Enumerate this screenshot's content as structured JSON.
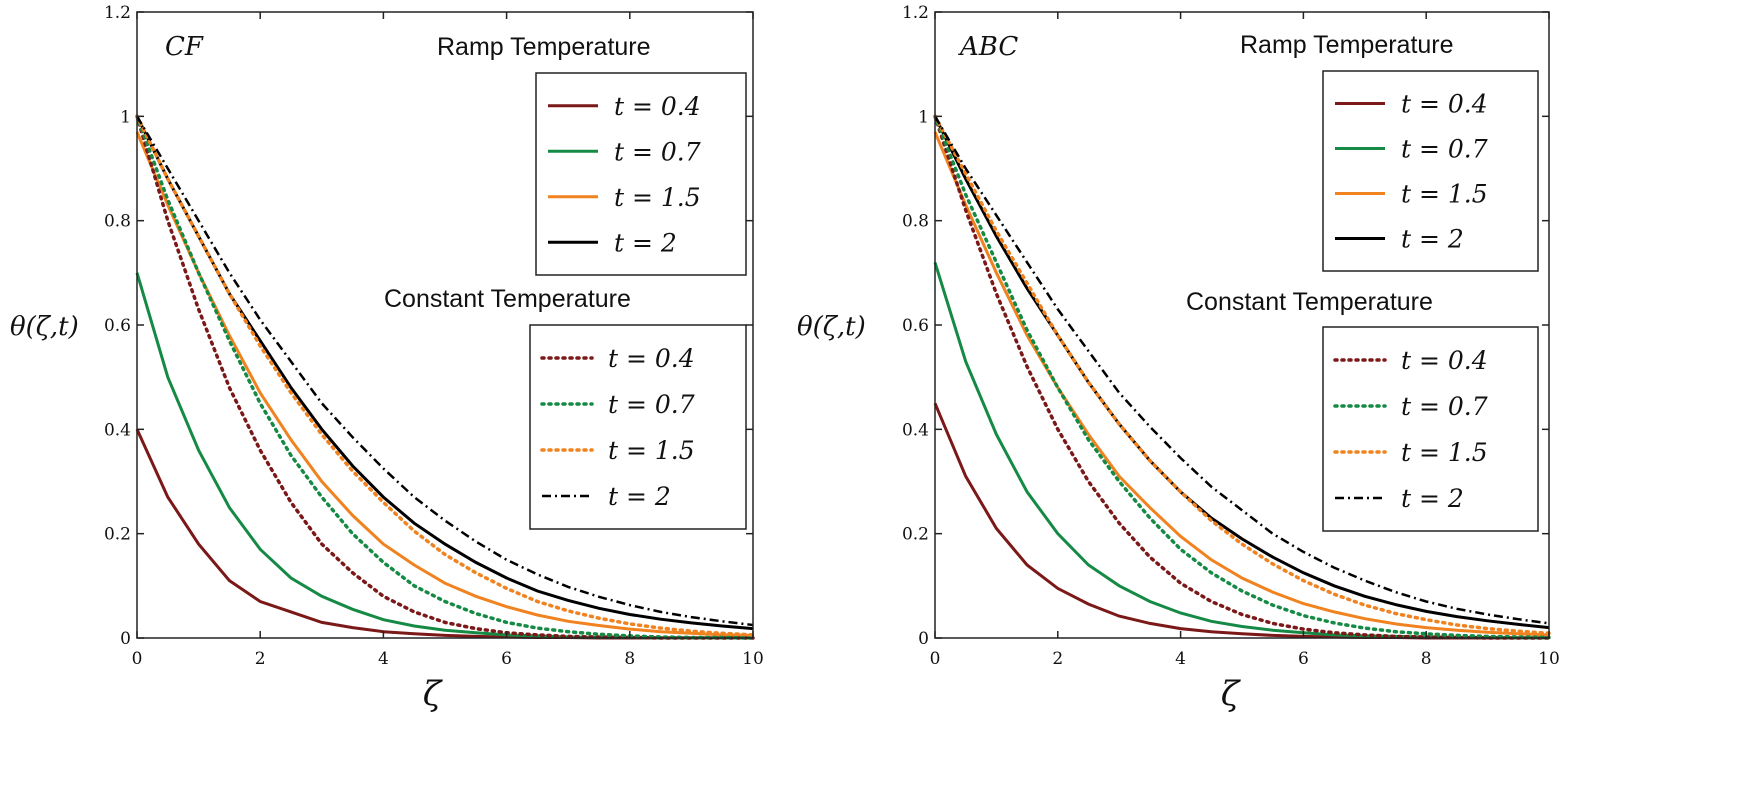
{
  "chart_data": [
    {
      "type": "line",
      "panel_label": "CF",
      "xlabel": "ζ",
      "ylabel": "θ(ζ,t)",
      "xlim": [
        0,
        10
      ],
      "ylim": [
        0,
        1.2
      ],
      "x_ticks": [
        0,
        2,
        4,
        6,
        8,
        10
      ],
      "y_ticks": [
        0,
        0.2,
        0.4,
        0.6,
        0.8,
        1,
        1.2
      ],
      "x_tick_labels": [
        "0",
        "2",
        "4",
        "6",
        "8",
        "10"
      ],
      "y_tick_labels": [
        "0",
        "0.2",
        "0.4",
        "0.6",
        "0.8",
        "1",
        "1.2"
      ],
      "grid": false,
      "x": [
        0,
        0.5,
        1,
        1.5,
        2,
        2.5,
        3,
        3.5,
        4,
        4.5,
        5,
        5.5,
        6,
        6.5,
        7,
        7.5,
        8,
        8.5,
        9,
        9.5,
        10
      ],
      "legends": [
        {
          "title": "Ramp Temperature",
          "placement": "top-right",
          "entries": [
            {
              "label": "t = 0.4",
              "series_index": 0
            },
            {
              "label": "t = 0.7",
              "series_index": 1
            },
            {
              "label": "t = 1.5",
              "series_index": 2
            },
            {
              "label": "t = 2",
              "series_index": 3
            }
          ]
        },
        {
          "title": "Constant Temperature",
          "placement": "middle-right",
          "entries": [
            {
              "label": "t = 0.4",
              "series_index": 4
            },
            {
              "label": "t = 0.7",
              "series_index": 5
            },
            {
              "label": "t = 1.5",
              "series_index": 6
            },
            {
              "label": "t = 2",
              "series_index": 7
            }
          ]
        }
      ],
      "series": [
        {
          "group": "ramp",
          "t": 0.4,
          "color": "#7b1818",
          "style": "solid",
          "values": [
            0.4,
            0.27,
            0.18,
            0.11,
            0.07,
            0.05,
            0.03,
            0.02,
            0.012,
            0.008,
            0.005,
            0.003,
            0.002,
            0.001,
            0.001,
            0,
            0,
            0,
            0,
            0,
            0
          ]
        },
        {
          "group": "ramp",
          "t": 0.7,
          "color": "#158a45",
          "style": "solid",
          "values": [
            0.7,
            0.5,
            0.36,
            0.25,
            0.17,
            0.115,
            0.08,
            0.055,
            0.035,
            0.023,
            0.015,
            0.01,
            0.006,
            0.004,
            0.002,
            0.001,
            0.001,
            0,
            0,
            0,
            0
          ]
        },
        {
          "group": "ramp",
          "t": 1.5,
          "color": "#f0821f",
          "style": "solid",
          "values": [
            0.97,
            0.83,
            0.7,
            0.58,
            0.47,
            0.38,
            0.3,
            0.235,
            0.18,
            0.14,
            0.105,
            0.08,
            0.06,
            0.044,
            0.032,
            0.024,
            0.017,
            0.012,
            0.009,
            0.006,
            0.005
          ]
        },
        {
          "group": "ramp",
          "t": 2,
          "color": "#000000",
          "style": "solid",
          "values": [
            1.0,
            0.88,
            0.77,
            0.66,
            0.57,
            0.48,
            0.4,
            0.33,
            0.27,
            0.22,
            0.18,
            0.145,
            0.115,
            0.09,
            0.072,
            0.057,
            0.045,
            0.036,
            0.029,
            0.023,
            0.018
          ]
        },
        {
          "group": "constant",
          "t": 0.4,
          "color": "#7b1818",
          "style": "dotted",
          "values": [
            1.0,
            0.8,
            0.63,
            0.48,
            0.36,
            0.26,
            0.18,
            0.125,
            0.08,
            0.05,
            0.03,
            0.018,
            0.01,
            0.006,
            0.003,
            0.002,
            0.001,
            0,
            0,
            0,
            0
          ]
        },
        {
          "group": "constant",
          "t": 0.7,
          "color": "#158a45",
          "style": "dotted",
          "values": [
            1.0,
            0.84,
            0.7,
            0.57,
            0.45,
            0.35,
            0.27,
            0.2,
            0.145,
            0.1,
            0.07,
            0.047,
            0.03,
            0.019,
            0.012,
            0.007,
            0.004,
            0.002,
            0.001,
            0.001,
            0
          ]
        },
        {
          "group": "constant",
          "t": 1.5,
          "color": "#f0821f",
          "style": "dotted",
          "values": [
            1.0,
            0.88,
            0.77,
            0.66,
            0.56,
            0.47,
            0.39,
            0.32,
            0.26,
            0.205,
            0.16,
            0.125,
            0.095,
            0.07,
            0.052,
            0.038,
            0.027,
            0.019,
            0.013,
            0.009,
            0.006
          ]
        },
        {
          "group": "constant",
          "t": 2,
          "color": "#000000",
          "style": "dashdot",
          "values": [
            1.0,
            0.9,
            0.8,
            0.7,
            0.61,
            0.53,
            0.45,
            0.385,
            0.325,
            0.27,
            0.225,
            0.185,
            0.15,
            0.122,
            0.098,
            0.079,
            0.063,
            0.05,
            0.04,
            0.032,
            0.025
          ]
        }
      ]
    },
    {
      "type": "line",
      "panel_label": "ABC",
      "xlabel": "ζ",
      "ylabel": "θ(ζ,t)",
      "xlim": [
        0,
        10
      ],
      "ylim": [
        0,
        1.2
      ],
      "x_ticks": [
        0,
        2,
        4,
        6,
        8,
        10
      ],
      "y_ticks": [
        0,
        0.2,
        0.4,
        0.6,
        0.8,
        1,
        1.2
      ],
      "x_tick_labels": [
        "0",
        "2",
        "4",
        "6",
        "8",
        "10"
      ],
      "y_tick_labels": [
        "0",
        "0.2",
        "0.4",
        "0.6",
        "0.8",
        "1",
        "1.2"
      ],
      "grid": false,
      "x": [
        0,
        0.5,
        1,
        1.5,
        2,
        2.5,
        3,
        3.5,
        4,
        4.5,
        5,
        5.5,
        6,
        6.5,
        7,
        7.5,
        8,
        8.5,
        9,
        9.5,
        10
      ],
      "legends": [
        {
          "title": "Ramp Temperature",
          "placement": "top-right",
          "entries": [
            {
              "label": "t = 0.4",
              "series_index": 0
            },
            {
              "label": "t = 0.7",
              "series_index": 1
            },
            {
              "label": "t = 1.5",
              "series_index": 2
            },
            {
              "label": "t = 2",
              "series_index": 3
            }
          ]
        },
        {
          "title": "Constant Temperature",
          "placement": "middle-right",
          "entries": [
            {
              "label": "t = 0.4",
              "series_index": 4
            },
            {
              "label": "t = 0.7",
              "series_index": 5
            },
            {
              "label": "t = 1.5",
              "series_index": 6
            },
            {
              "label": "t = 2",
              "series_index": 7
            }
          ]
        }
      ],
      "series": [
        {
          "group": "ramp",
          "t": 0.4,
          "color": "#7b1818",
          "style": "solid",
          "values": [
            0.45,
            0.31,
            0.21,
            0.14,
            0.095,
            0.065,
            0.042,
            0.028,
            0.018,
            0.012,
            0.008,
            0.005,
            0.003,
            0.002,
            0.001,
            0.001,
            0,
            0,
            0,
            0,
            0
          ]
        },
        {
          "group": "ramp",
          "t": 0.7,
          "color": "#158a45",
          "style": "solid",
          "values": [
            0.72,
            0.53,
            0.39,
            0.28,
            0.2,
            0.14,
            0.1,
            0.07,
            0.048,
            0.032,
            0.022,
            0.015,
            0.01,
            0.006,
            0.004,
            0.003,
            0.002,
            0.001,
            0.001,
            0,
            0
          ]
        },
        {
          "group": "ramp",
          "t": 1.5,
          "color": "#f0821f",
          "style": "solid",
          "values": [
            0.97,
            0.83,
            0.7,
            0.58,
            0.48,
            0.39,
            0.31,
            0.25,
            0.195,
            0.15,
            0.115,
            0.088,
            0.066,
            0.05,
            0.037,
            0.027,
            0.02,
            0.015,
            0.011,
            0.008,
            0.006
          ]
        },
        {
          "group": "ramp",
          "t": 2,
          "color": "#000000",
          "style": "solid",
          "values": [
            1.0,
            0.88,
            0.77,
            0.67,
            0.58,
            0.49,
            0.41,
            0.34,
            0.28,
            0.23,
            0.19,
            0.155,
            0.125,
            0.1,
            0.08,
            0.064,
            0.051,
            0.041,
            0.033,
            0.026,
            0.02
          ]
        },
        {
          "group": "constant",
          "t": 0.4,
          "color": "#7b1818",
          "style": "dotted",
          "values": [
            1.0,
            0.82,
            0.66,
            0.52,
            0.4,
            0.3,
            0.22,
            0.155,
            0.105,
            0.07,
            0.045,
            0.028,
            0.017,
            0.01,
            0.006,
            0.003,
            0.002,
            0.001,
            0,
            0,
            0
          ]
        },
        {
          "group": "constant",
          "t": 0.7,
          "color": "#158a45",
          "style": "dotted",
          "values": [
            1.0,
            0.85,
            0.72,
            0.59,
            0.48,
            0.38,
            0.3,
            0.23,
            0.17,
            0.125,
            0.09,
            0.063,
            0.043,
            0.029,
            0.019,
            0.012,
            0.008,
            0.005,
            0.003,
            0.002,
            0.001
          ]
        },
        {
          "group": "constant",
          "t": 1.5,
          "color": "#f0821f",
          "style": "dotted",
          "values": [
            1.0,
            0.89,
            0.78,
            0.68,
            0.58,
            0.49,
            0.41,
            0.34,
            0.28,
            0.225,
            0.18,
            0.142,
            0.11,
            0.084,
            0.063,
            0.047,
            0.035,
            0.025,
            0.018,
            0.013,
            0.009
          ]
        },
        {
          "group": "constant",
          "t": 2,
          "color": "#000000",
          "style": "dashdot",
          "values": [
            1.0,
            0.9,
            0.81,
            0.72,
            0.63,
            0.55,
            0.47,
            0.405,
            0.345,
            0.29,
            0.245,
            0.2,
            0.165,
            0.135,
            0.11,
            0.088,
            0.07,
            0.056,
            0.045,
            0.036,
            0.028
          ]
        }
      ]
    }
  ]
}
